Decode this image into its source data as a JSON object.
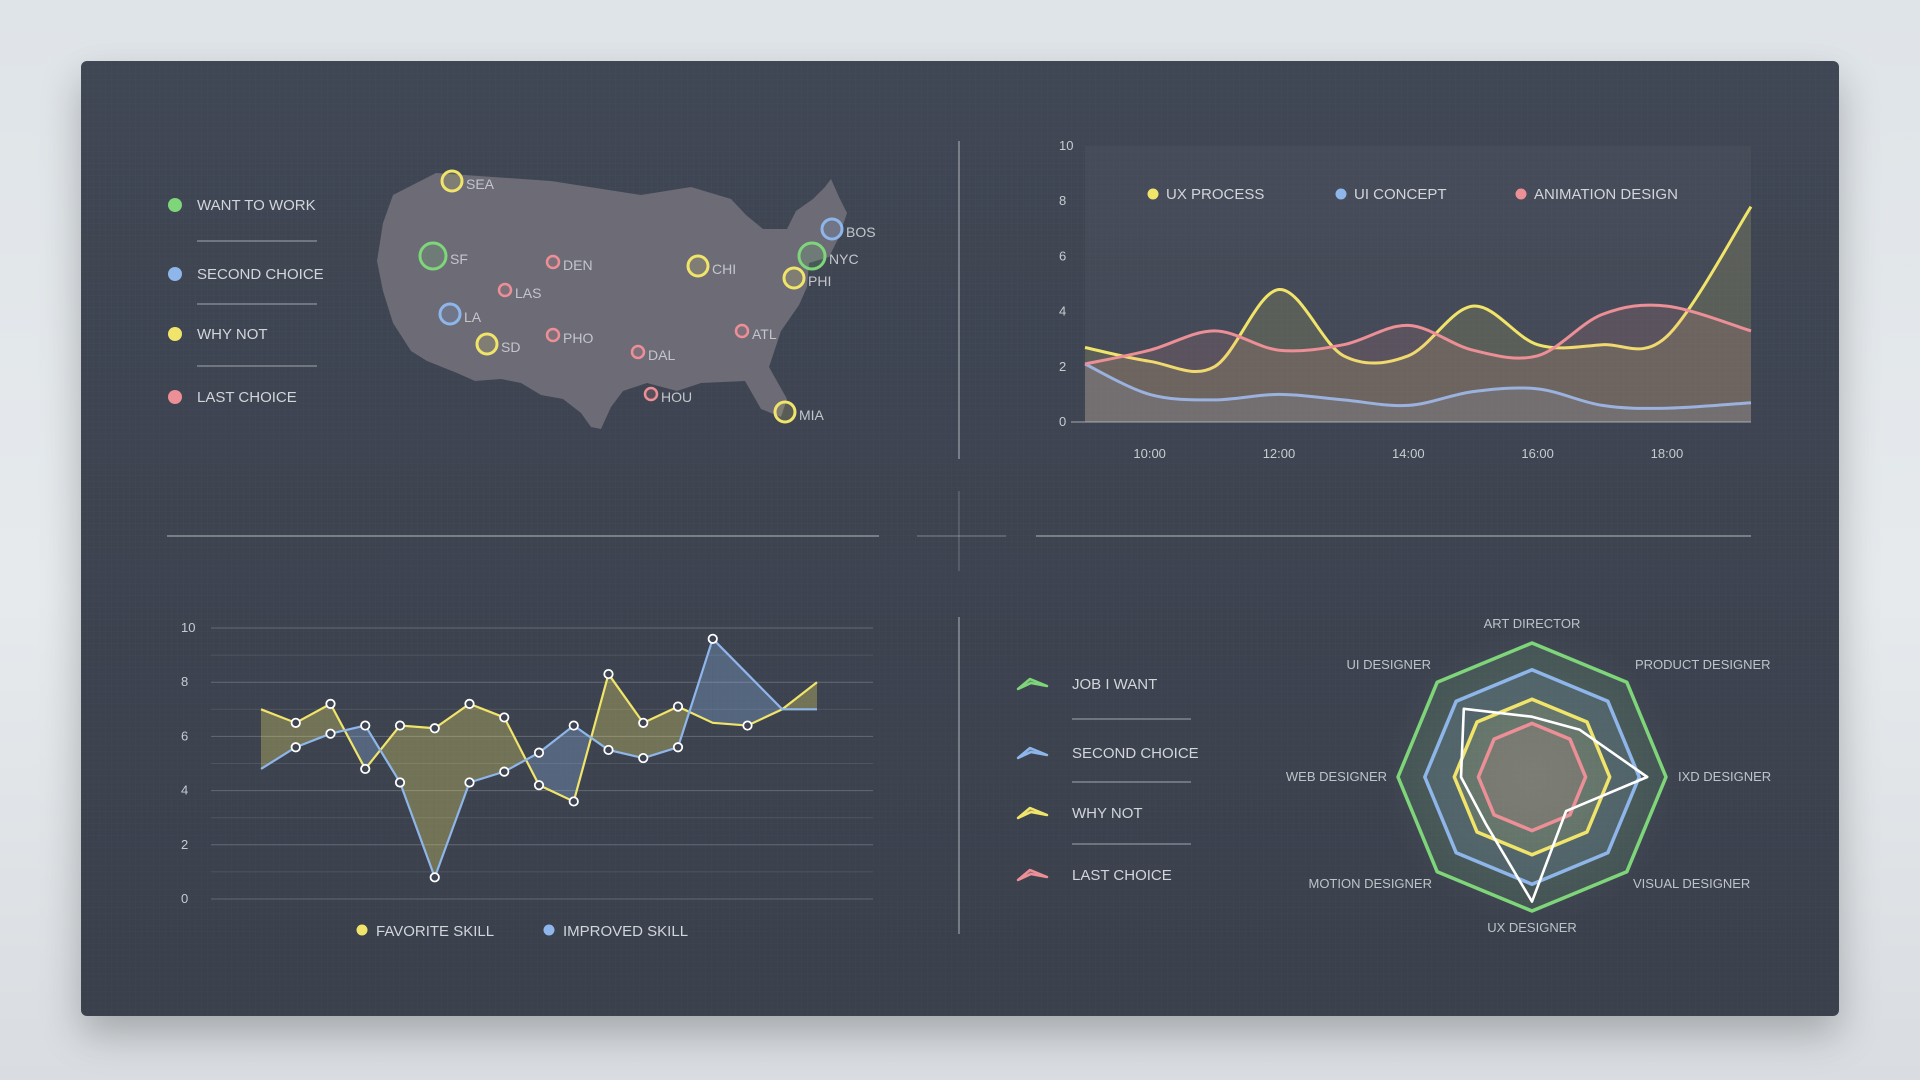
{
  "colors": {
    "green": "#7fd57a",
    "blue": "#8fb6ea",
    "yellow": "#f1e46a",
    "red": "#ec8f96",
    "white": "#ffffff",
    "card": "#3d4350",
    "text": "#c8ccd2"
  },
  "map_legend": [
    {
      "label": "WANT TO WORK",
      "color": "green"
    },
    {
      "label": "SECOND CHOICE",
      "color": "blue"
    },
    {
      "label": "WHY NOT",
      "color": "yellow"
    },
    {
      "label": "LAST CHOICE",
      "color": "red"
    }
  ],
  "map_cities": [
    {
      "name": "SEA",
      "pref": "yellow"
    },
    {
      "name": "SF",
      "pref": "green"
    },
    {
      "name": "LA",
      "pref": "blue"
    },
    {
      "name": "SD",
      "pref": "yellow"
    },
    {
      "name": "LAS",
      "pref": "red"
    },
    {
      "name": "DEN",
      "pref": "red"
    },
    {
      "name": "PHO",
      "pref": "red"
    },
    {
      "name": "DAL",
      "pref": "red"
    },
    {
      "name": "HOU",
      "pref": "red"
    },
    {
      "name": "CHI",
      "pref": "yellow"
    },
    {
      "name": "ATL",
      "pref": "red"
    },
    {
      "name": "BOS",
      "pref": "blue"
    },
    {
      "name": "NYC",
      "pref": "green"
    },
    {
      "name": "PHI",
      "pref": "yellow"
    },
    {
      "name": "MIA",
      "pref": "yellow"
    }
  ],
  "chart_data": [
    {
      "type": "area",
      "yticks": [
        0,
        2,
        4,
        6,
        8,
        10
      ],
      "ylim": [
        0,
        10
      ],
      "xlim": [
        9.0,
        19.3
      ],
      "xticks": [
        "10:00",
        "12:00",
        "14:00",
        "16:00",
        "18:00"
      ],
      "xtick_values": [
        10,
        12,
        14,
        16,
        18
      ],
      "x": [
        9.0,
        10.0,
        11.0,
        12.0,
        13.0,
        14.0,
        15.0,
        16.0,
        17.0,
        18.0,
        19.3
      ],
      "series": [
        {
          "name": "UX PROCESS",
          "color": "yellow",
          "values": [
            2.7,
            2.2,
            2.0,
            4.8,
            2.4,
            2.4,
            4.2,
            2.8,
            2.8,
            3.1,
            7.8
          ]
        },
        {
          "name": "UI CONCEPT",
          "color": "blue",
          "values": [
            2.1,
            1.0,
            0.8,
            1.0,
            0.8,
            0.6,
            1.1,
            1.2,
            0.6,
            0.5,
            0.7
          ]
        },
        {
          "name": "ANIMATION DESIGN",
          "color": "red",
          "values": [
            2.1,
            2.6,
            3.3,
            2.6,
            2.8,
            3.5,
            2.6,
            2.4,
            3.9,
            4.2,
            3.3
          ]
        }
      ]
    },
    {
      "type": "line",
      "yticks": [
        0,
        2,
        4,
        6,
        8,
        10
      ],
      "ylim": [
        0,
        10
      ],
      "xlim": [
        1,
        17
      ],
      "x": [
        1,
        2,
        3,
        4,
        5,
        6,
        7,
        8,
        9,
        10,
        11,
        12,
        13,
        14,
        15,
        16,
        17
      ],
      "series": [
        {
          "name": "FAVORITE SKILL",
          "color": "yellow",
          "values": [
            7.0,
            6.5,
            7.2,
            4.8,
            6.4,
            6.3,
            7.2,
            6.7,
            4.2,
            3.6,
            8.3,
            6.5,
            7.1,
            6.5,
            6.4,
            7.0,
            8.0
          ]
        },
        {
          "name": "IMPROVED SKILL",
          "color": "blue",
          "values": [
            4.8,
            5.6,
            6.1,
            6.4,
            4.3,
            0.8,
            4.3,
            4.7,
            5.4,
            6.4,
            5.5,
            5.2,
            5.6,
            9.6,
            8.3,
            7.0,
            7.0
          ]
        }
      ],
      "white_markers": [
        {
          "series": 0,
          "x": [
            2,
            3,
            4,
            5,
            6,
            7,
            8,
            9,
            10,
            11,
            12,
            13,
            15
          ]
        },
        {
          "series": 1,
          "x": [
            2,
            3,
            4,
            5,
            6,
            7,
            8,
            9,
            10,
            11,
            12,
            13,
            14
          ]
        }
      ]
    },
    {
      "type": "radar",
      "axes": [
        "ART DIRECTOR",
        "PRODUCT DESIGNER",
        "IXD DESIGNER",
        "VISUAL DESIGNER",
        "UX DESIGNER",
        "MOTION DESIGNER",
        "WEB DESIGNER",
        "UI DESIGNER"
      ],
      "max": 10,
      "series": [
        {
          "name": "JOB I WANT",
          "color": "green",
          "values": [
            10,
            10,
            10,
            10,
            10,
            10,
            10,
            10
          ]
        },
        {
          "name": "SECOND CHOICE",
          "color": "blue",
          "values": [
            8.0,
            8.0,
            8.0,
            8.0,
            8.0,
            8.0,
            8.0,
            8.0
          ]
        },
        {
          "name": "WHY NOT",
          "color": "yellow",
          "values": [
            5.8,
            5.8,
            5.8,
            5.8,
            5.8,
            5.8,
            5.8,
            5.8
          ]
        },
        {
          "name": "LAST CHOICE",
          "color": "red",
          "values": [
            4.0,
            4.0,
            4.0,
            4.0,
            4.0,
            4.0,
            4.0,
            4.0
          ]
        },
        {
          "name": "",
          "color": "white",
          "values": [
            4.5,
            5.0,
            8.6,
            3.6,
            9.3,
            4.9,
            5.3,
            7.2
          ]
        }
      ]
    }
  ]
}
